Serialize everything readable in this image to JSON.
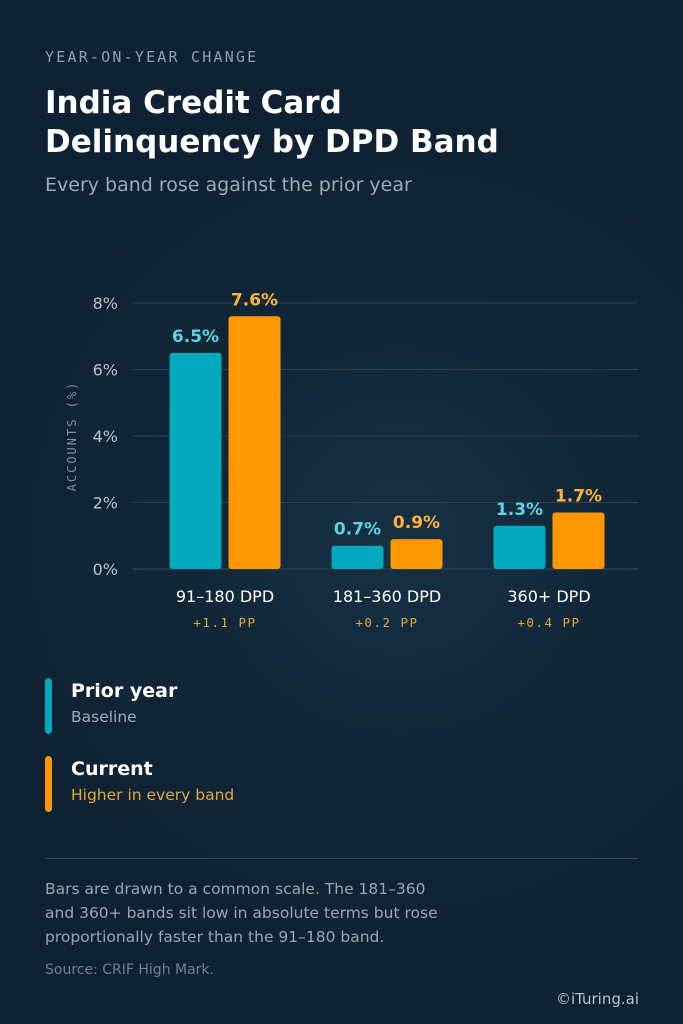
{
  "header": {
    "eyebrow": "YEAR-ON-YEAR CHANGE",
    "title_lines": [
      "India Credit Card",
      "Delinquency by DPD Band"
    ],
    "subtitle": "Every band rose against the prior year"
  },
  "chart_data": {
    "type": "bar",
    "ylabel": "ACCOUNTS (%)",
    "ylim": [
      0,
      8
    ],
    "yticks": [
      0,
      2,
      4,
      6,
      8
    ],
    "ytick_labels": [
      "0%",
      "2%",
      "4%",
      "6%",
      "8%"
    ],
    "grid": true,
    "categories": [
      "91–180 DPD",
      "181–360 DPD",
      "360+ DPD"
    ],
    "category_notes": [
      "+1.1 PP",
      "+0.2 PP",
      "+0.4 PP"
    ],
    "series": [
      {
        "name": "Prior year",
        "values": [
          6.5,
          0.7,
          1.3
        ],
        "labels": [
          "6.5%",
          "0.7%",
          "1.3%"
        ],
        "color": "#00a9bd",
        "label_color": "#5fd3e2"
      },
      {
        "name": "Current",
        "values": [
          7.6,
          0.9,
          1.7
        ],
        "labels": [
          "7.6%",
          "0.9%",
          "1.7%"
        ],
        "color": "#ff9800",
        "label_color": "#ffb13b"
      }
    ]
  },
  "legend": [
    {
      "name": "Prior year",
      "desc": "Baseline",
      "color": "#00a9bd",
      "desc_color": "#9aabb8"
    },
    {
      "name": "Current",
      "desc": "Higher in every band",
      "color": "#ff9800",
      "desc_color": "#e0a93a"
    }
  ],
  "footer": {
    "note_lines": [
      "Bars are drawn to a common scale. The 181–360",
      "and 360+ bands sit low in absolute terms but rose",
      "proportionally faster than the 91–180 band."
    ],
    "source": "Source: CRIF High Mark.",
    "brand": "©iTuring.ai"
  },
  "colors": {
    "background": "#0f2233",
    "grid": "#2a4052",
    "axis_text": "#b7c2cb",
    "category_text": "#ffffff",
    "note_text": "#e0a93a"
  }
}
